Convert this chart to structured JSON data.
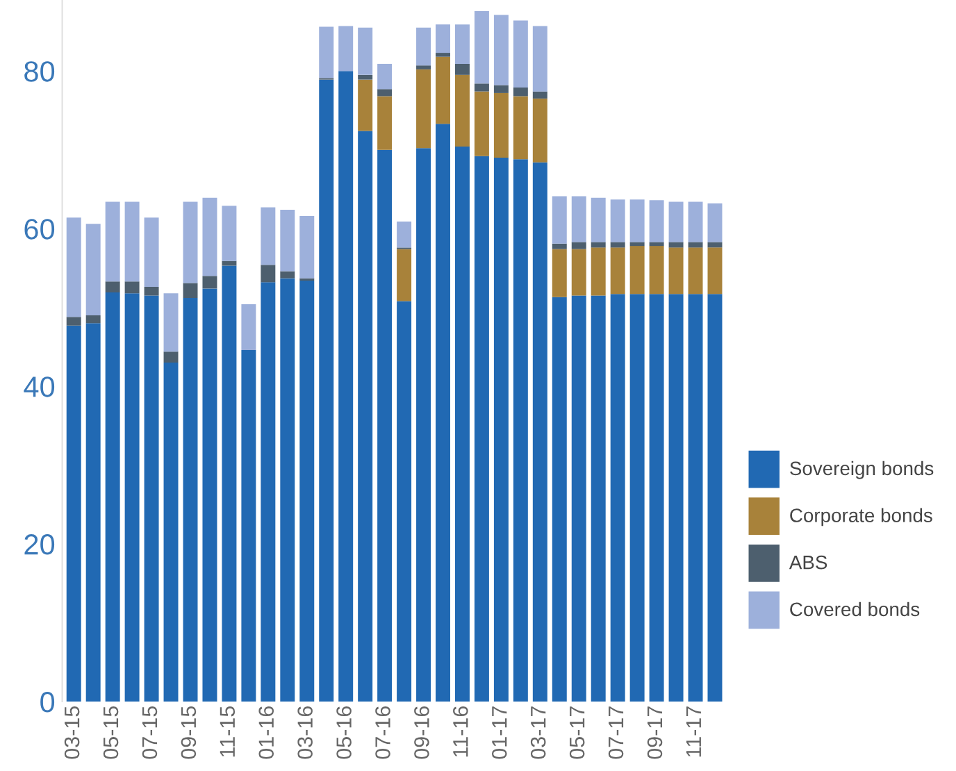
{
  "chart_data": {
    "type": "bar",
    "stacked": true,
    "categories": [
      "03-15",
      null,
      "05-15",
      null,
      "07-15",
      null,
      "09-15",
      null,
      "11-15",
      null,
      "01-16",
      null,
      "03-16",
      null,
      "05-16",
      null,
      "07-16",
      null,
      "09-16",
      null,
      "11-16",
      null,
      "01-17",
      null,
      "03-17",
      null,
      "05-17",
      null,
      "07-17",
      null,
      "09-17",
      null,
      "11-17",
      null
    ],
    "series": [
      {
        "name": "Sovereign bonds",
        "color": "#2169b3",
        "values": [
          47.7,
          48.0,
          51.9,
          51.8,
          51.5,
          43.0,
          51.2,
          52.4,
          55.3,
          44.6,
          53.2,
          53.7,
          53.4,
          78.9,
          80.0,
          72.4,
          70.0,
          50.8,
          70.2,
          73.3,
          70.4,
          69.2,
          69.0,
          68.8,
          68.4,
          51.3,
          51.5,
          51.5,
          51.7,
          51.7,
          51.7,
          51.7,
          51.7,
          51.7
        ]
      },
      {
        "name": "Corporate bonds",
        "color": "#a8823a",
        "values": [
          0,
          0,
          0,
          0,
          0,
          0,
          0,
          0,
          0,
          0,
          0,
          0,
          0,
          0,
          0,
          6.5,
          6.8,
          6.6,
          10.0,
          8.5,
          9.1,
          8.2,
          8.2,
          8.0,
          8.1,
          6.1,
          5.9,
          6.1,
          5.9,
          6.1,
          6.1,
          5.9,
          5.9,
          5.9
        ]
      },
      {
        "name": "ABS",
        "color": "#4d5f6e",
        "values": [
          1.1,
          1.0,
          1.4,
          1.5,
          1.1,
          1.4,
          1.9,
          1.6,
          0.6,
          0,
          2.2,
          0.9,
          0.3,
          0.2,
          0,
          0.6,
          0.9,
          0.2,
          0.5,
          0.5,
          1.4,
          1.0,
          1.0,
          1.1,
          0.9,
          0.7,
          0.9,
          0.7,
          0.7,
          0.5,
          0.5,
          0.7,
          0.7,
          0.7
        ]
      },
      {
        "name": "Covered bonds",
        "color": "#9db0db",
        "values": [
          12.6,
          11.6,
          10.1,
          10.1,
          8.8,
          7.4,
          10.3,
          9.9,
          7.0,
          5.8,
          7.3,
          7.8,
          7.9,
          6.5,
          5.7,
          6.0,
          3.2,
          3.3,
          4.8,
          3.6,
          5.0,
          9.2,
          8.9,
          8.5,
          8.3,
          6.0,
          5.8,
          5.6,
          5.4,
          5.4,
          5.3,
          5.1,
          5.1,
          4.9
        ]
      }
    ],
    "ylim": [
      0,
      89
    ],
    "yticks": [
      0,
      20,
      40,
      60,
      80
    ],
    "legend": "right"
  }
}
